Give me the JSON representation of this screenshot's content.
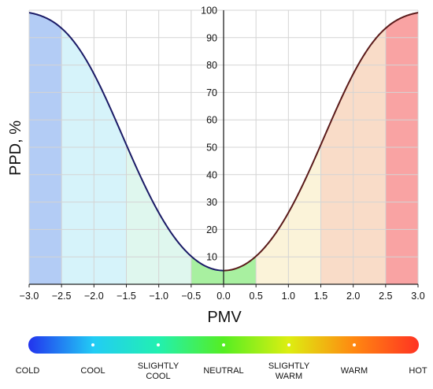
{
  "chart_data": {
    "type": "line",
    "xlabel": "PMV",
    "ylabel": "PPD, %",
    "xlim": [
      -3.0,
      3.0
    ],
    "ylim": [
      0,
      100
    ],
    "x_ticks": [
      "−3.0",
      "−2.5",
      "−2.0",
      "−1.5",
      "−1.0",
      "−0.5",
      "0.0",
      "0.5",
      "1.0",
      "1.5",
      "2.0",
      "2.5",
      "3.0"
    ],
    "y_ticks": [
      "10",
      "20",
      "30",
      "40",
      "50",
      "60",
      "70",
      "80",
      "90",
      "100"
    ],
    "grid": true,
    "series": [
      {
        "x": [
          -3.0,
          -2.75,
          -2.5,
          -2.25,
          -2.0,
          -1.75,
          -1.5,
          -1.25,
          -1.0,
          -0.75,
          -0.5,
          -0.25,
          0.0,
          0.25,
          0.5,
          0.75,
          1.0,
          1.25,
          1.5,
          1.75,
          2.0,
          2.25,
          2.5,
          2.75,
          3.0
        ],
        "y": [
          99.1,
          97.2,
          93.2,
          86.3,
          76.8,
          64.8,
          50.9,
          36.6,
          26.1,
          16.8,
          10.2,
          6.3,
          5.0,
          6.3,
          10.2,
          16.8,
          26.1,
          36.6,
          50.9,
          64.8,
          76.8,
          86.3,
          93.2,
          97.2,
          99.1
        ]
      }
    ],
    "bands": [
      {
        "from": -3.0,
        "to": -2.5,
        "color": "#b3ccf5"
      },
      {
        "from": -2.5,
        "to": -1.5,
        "color": "#d6f3fa"
      },
      {
        "from": -1.5,
        "to": -0.5,
        "color": "#dff7ee"
      },
      {
        "from": -0.5,
        "to": 0.5,
        "color": "#a8f0a0"
      },
      {
        "from": 0.5,
        "to": 1.5,
        "color": "#fbf3d9"
      },
      {
        "from": 1.5,
        "to": 2.5,
        "color": "#f9dcc8"
      },
      {
        "from": 2.5,
        "to": 3.0,
        "color": "#f9a3a3"
      }
    ],
    "curve_colors": {
      "cool": "#1a1a66",
      "warm": "#5a1a1a"
    }
  },
  "thermal_scale": {
    "labels": [
      {
        "lines": [
          "COLD"
        ]
      },
      {
        "lines": [
          "COOL"
        ]
      },
      {
        "lines": [
          "SLIGHTLY",
          "COOL"
        ]
      },
      {
        "lines": [
          "NEUTRAL"
        ]
      },
      {
        "lines": [
          "SLIGHTLY",
          "WARM"
        ]
      },
      {
        "lines": [
          "WARM"
        ]
      },
      {
        "lines": [
          "HOT"
        ]
      }
    ],
    "gradient_colors": [
      "#2233ee",
      "#22ccf5",
      "#22f0b0",
      "#55ee22",
      "#ddee11",
      "#ff8811",
      "#ff3322"
    ]
  }
}
